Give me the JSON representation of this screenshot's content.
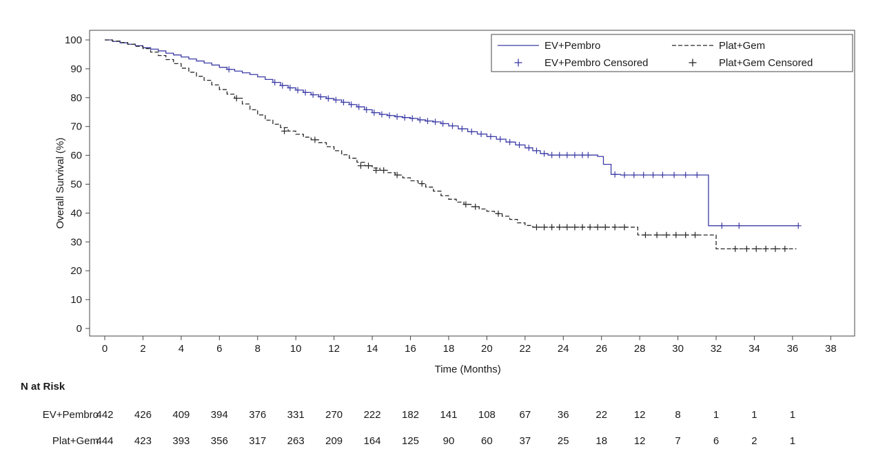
{
  "chart_data": {
    "type": "line",
    "subtype": "kaplan-meier-step",
    "title": "",
    "xlabel": "Time (Months)",
    "ylabel": "Overall Survival (%)",
    "xlim": [
      0,
      38
    ],
    "ylim": [
      0,
      100
    ],
    "xticks": [
      0,
      2,
      4,
      6,
      8,
      10,
      12,
      14,
      16,
      18,
      20,
      22,
      24,
      26,
      28,
      30,
      32,
      34,
      36,
      38
    ],
    "yticks": [
      0,
      10,
      20,
      30,
      40,
      50,
      60,
      70,
      80,
      90,
      100
    ],
    "grid": false,
    "legend": {
      "position": "top-right",
      "entries": [
        {
          "label": "EV+Pembro",
          "marker": "line-solid",
          "color": "#3a3aa5"
        },
        {
          "label": "Plat+Gem",
          "marker": "line-dashed",
          "color": "#262626"
        },
        {
          "label": "EV+Pembro Censored",
          "marker": "plus",
          "color": "#3a3aa5"
        },
        {
          "label": "Plat+Gem Censored",
          "marker": "plus",
          "color": "#262626"
        }
      ]
    },
    "series": [
      {
        "name": "EV+Pembro",
        "color": "#3a3aa5",
        "style": "solid",
        "steps": [
          [
            0,
            100
          ],
          [
            0.4,
            99.5
          ],
          [
            0.8,
            99
          ],
          [
            1.2,
            98.5
          ],
          [
            1.6,
            98
          ],
          [
            2,
            97.3
          ],
          [
            2.4,
            96.8
          ],
          [
            2.8,
            96.2
          ],
          [
            3.2,
            95.4
          ],
          [
            3.6,
            94.8
          ],
          [
            4,
            94.1
          ],
          [
            4.4,
            93.4
          ],
          [
            4.8,
            92.7
          ],
          [
            5.2,
            92
          ],
          [
            5.6,
            91.3
          ],
          [
            6,
            90.5
          ],
          [
            6.4,
            89.8
          ],
          [
            6.8,
            89.2
          ],
          [
            7.2,
            88.6
          ],
          [
            7.6,
            88
          ],
          [
            8,
            87.2
          ],
          [
            8.4,
            86.3
          ],
          [
            8.8,
            85.3
          ],
          [
            9.2,
            84.2
          ],
          [
            9.6,
            83.4
          ],
          [
            10,
            82.6
          ],
          [
            10.4,
            81.8
          ],
          [
            10.8,
            81
          ],
          [
            11.2,
            80.3
          ],
          [
            11.6,
            79.7
          ],
          [
            12,
            79.2
          ],
          [
            12.4,
            78.4
          ],
          [
            12.8,
            77.6
          ],
          [
            13.2,
            76.8
          ],
          [
            13.6,
            75.8
          ],
          [
            14,
            74.8
          ],
          [
            14.4,
            74.2
          ],
          [
            14.8,
            73.8
          ],
          [
            15.2,
            73.4
          ],
          [
            15.6,
            73.1
          ],
          [
            16,
            72.8
          ],
          [
            16.4,
            72.3
          ],
          [
            16.8,
            71.9
          ],
          [
            17.2,
            71.6
          ],
          [
            17.6,
            71
          ],
          [
            18,
            70.2
          ],
          [
            18.5,
            69.2
          ],
          [
            19,
            68.2
          ],
          [
            19.5,
            67.4
          ],
          [
            20,
            66.5
          ],
          [
            20.5,
            65.6
          ],
          [
            21,
            64.6
          ],
          [
            21.5,
            63.6
          ],
          [
            22,
            62.6
          ],
          [
            22.4,
            61.6
          ],
          [
            22.8,
            60.6
          ],
          [
            23.2,
            60.1
          ],
          [
            25.4,
            60.1
          ],
          [
            25.8,
            59.6
          ],
          [
            26.1,
            56.9
          ],
          [
            26.5,
            53.4
          ],
          [
            27,
            53.2
          ],
          [
            31.5,
            53.2
          ],
          [
            31.6,
            35.6
          ],
          [
            36.3,
            35.6
          ]
        ],
        "censored": [
          [
            6.5,
            89.8
          ],
          [
            8.9,
            85.3
          ],
          [
            9.3,
            84.2
          ],
          [
            9.7,
            83.4
          ],
          [
            10.1,
            82.6
          ],
          [
            10.5,
            81.8
          ],
          [
            10.9,
            81
          ],
          [
            11.3,
            80.3
          ],
          [
            11.7,
            79.7
          ],
          [
            12.1,
            79.2
          ],
          [
            12.5,
            78.4
          ],
          [
            12.9,
            77.6
          ],
          [
            13.3,
            76.8
          ],
          [
            13.7,
            75.8
          ],
          [
            14.1,
            74.8
          ],
          [
            14.5,
            74.2
          ],
          [
            14.9,
            73.8
          ],
          [
            15.3,
            73.4
          ],
          [
            15.7,
            73.1
          ],
          [
            16.1,
            72.8
          ],
          [
            16.5,
            72.3
          ],
          [
            16.9,
            71.9
          ],
          [
            17.3,
            71.6
          ],
          [
            17.7,
            71
          ],
          [
            18.2,
            70.2
          ],
          [
            18.7,
            69.2
          ],
          [
            19.2,
            68.2
          ],
          [
            19.7,
            67.4
          ],
          [
            20.2,
            66.5
          ],
          [
            20.7,
            65.6
          ],
          [
            21.2,
            64.6
          ],
          [
            21.7,
            63.6
          ],
          [
            22.2,
            62.6
          ],
          [
            22.6,
            61.6
          ],
          [
            23,
            60.6
          ],
          [
            23.4,
            60.1
          ],
          [
            23.8,
            60.1
          ],
          [
            24.2,
            60.1
          ],
          [
            24.6,
            60.1
          ],
          [
            25,
            60.1
          ],
          [
            25.3,
            60.1
          ],
          [
            26.7,
            53.4
          ],
          [
            27.2,
            53.2
          ],
          [
            27.7,
            53.2
          ],
          [
            28.2,
            53.2
          ],
          [
            28.7,
            53.2
          ],
          [
            29.2,
            53.2
          ],
          [
            29.8,
            53.2
          ],
          [
            30.4,
            53.2
          ],
          [
            31,
            53.2
          ],
          [
            32.3,
            35.6
          ],
          [
            33.2,
            35.6
          ],
          [
            36.3,
            35.6
          ]
        ]
      },
      {
        "name": "Plat+Gem",
        "color": "#262626",
        "style": "dashed",
        "steps": [
          [
            0,
            100
          ],
          [
            0.4,
            99.6
          ],
          [
            0.8,
            99.1
          ],
          [
            1.2,
            98.5
          ],
          [
            1.6,
            97.8
          ],
          [
            2,
            97
          ],
          [
            2.4,
            95.8
          ],
          [
            2.8,
            94.6
          ],
          [
            3.2,
            93.2
          ],
          [
            3.6,
            91.8
          ],
          [
            4,
            90.2
          ],
          [
            4.4,
            88.8
          ],
          [
            4.8,
            87.4
          ],
          [
            5.2,
            86
          ],
          [
            5.6,
            84.4
          ],
          [
            6,
            82.8
          ],
          [
            6.4,
            81.2
          ],
          [
            6.8,
            79.8
          ],
          [
            7.2,
            77.8
          ],
          [
            7.6,
            75.8
          ],
          [
            8,
            74
          ],
          [
            8.4,
            72.2
          ],
          [
            8.8,
            70.8
          ],
          [
            9.2,
            69.6
          ],
          [
            9.6,
            68.4
          ],
          [
            10,
            67.3
          ],
          [
            10.4,
            66.3
          ],
          [
            10.8,
            65.4
          ],
          [
            11.2,
            64.4
          ],
          [
            11.6,
            63
          ],
          [
            12,
            61.6
          ],
          [
            12.4,
            60.2
          ],
          [
            12.8,
            59
          ],
          [
            13.2,
            57.6
          ],
          [
            13.6,
            56.4
          ],
          [
            14,
            55.6
          ],
          [
            14.4,
            54.8
          ],
          [
            14.8,
            54
          ],
          [
            15.2,
            53.2
          ],
          [
            15.6,
            52.2
          ],
          [
            16,
            51.2
          ],
          [
            16.4,
            50.2
          ],
          [
            16.8,
            49
          ],
          [
            17.2,
            47.6
          ],
          [
            17.6,
            46
          ],
          [
            18,
            44.8
          ],
          [
            18.4,
            43.8
          ],
          [
            18.8,
            43
          ],
          [
            19.2,
            42.2
          ],
          [
            19.6,
            41.4
          ],
          [
            20,
            40.6
          ],
          [
            20.4,
            39.8
          ],
          [
            20.8,
            38.9
          ],
          [
            21.2,
            37.8
          ],
          [
            21.6,
            36.6
          ],
          [
            22,
            35.7
          ],
          [
            22.4,
            35.1
          ],
          [
            27.6,
            35.1
          ],
          [
            27.9,
            32.4
          ],
          [
            31.7,
            32.4
          ],
          [
            32,
            27.6
          ],
          [
            36.2,
            27.6
          ]
        ],
        "censored": [
          [
            6.9,
            79.8
          ],
          [
            9.4,
            68.4
          ],
          [
            11,
            65.4
          ],
          [
            13.4,
            56.4
          ],
          [
            13.8,
            56.4
          ],
          [
            14.2,
            54.8
          ],
          [
            14.6,
            54.8
          ],
          [
            15.3,
            53.2
          ],
          [
            16.6,
            50.2
          ],
          [
            18.9,
            43
          ],
          [
            19.4,
            42.2
          ],
          [
            20.6,
            39.8
          ],
          [
            22.6,
            35.1
          ],
          [
            23,
            35.1
          ],
          [
            23.4,
            35.1
          ],
          [
            23.8,
            35.1
          ],
          [
            24.2,
            35.1
          ],
          [
            24.6,
            35.1
          ],
          [
            25,
            35.1
          ],
          [
            25.4,
            35.1
          ],
          [
            25.8,
            35.1
          ],
          [
            26.2,
            35.1
          ],
          [
            26.7,
            35.1
          ],
          [
            27.2,
            35.1
          ],
          [
            28.3,
            32.4
          ],
          [
            28.9,
            32.4
          ],
          [
            29.4,
            32.4
          ],
          [
            29.9,
            32.4
          ],
          [
            30.4,
            32.4
          ],
          [
            30.9,
            32.4
          ],
          [
            33,
            27.6
          ],
          [
            33.6,
            27.6
          ],
          [
            34.1,
            27.6
          ],
          [
            34.6,
            27.6
          ],
          [
            35.1,
            27.6
          ],
          [
            35.6,
            27.6
          ]
        ]
      }
    ],
    "risk_table": {
      "title": "N at Risk",
      "times": [
        0,
        2,
        4,
        6,
        8,
        10,
        12,
        14,
        16,
        18,
        20,
        22,
        24,
        26,
        28,
        30,
        32,
        34,
        36
      ],
      "rows": [
        {
          "label": "EV+Pembro",
          "color": "#3a3aa5",
          "values": [
            442,
            426,
            409,
            394,
            376,
            331,
            270,
            222,
            182,
            141,
            108,
            67,
            36,
            22,
            12,
            8,
            1,
            1,
            1
          ]
        },
        {
          "label": "Plat+Gem",
          "color": "#262626",
          "values": [
            444,
            423,
            393,
            356,
            317,
            263,
            209,
            164,
            125,
            90,
            60,
            37,
            25,
            18,
            12,
            7,
            6,
            2,
            1
          ]
        }
      ]
    }
  }
}
